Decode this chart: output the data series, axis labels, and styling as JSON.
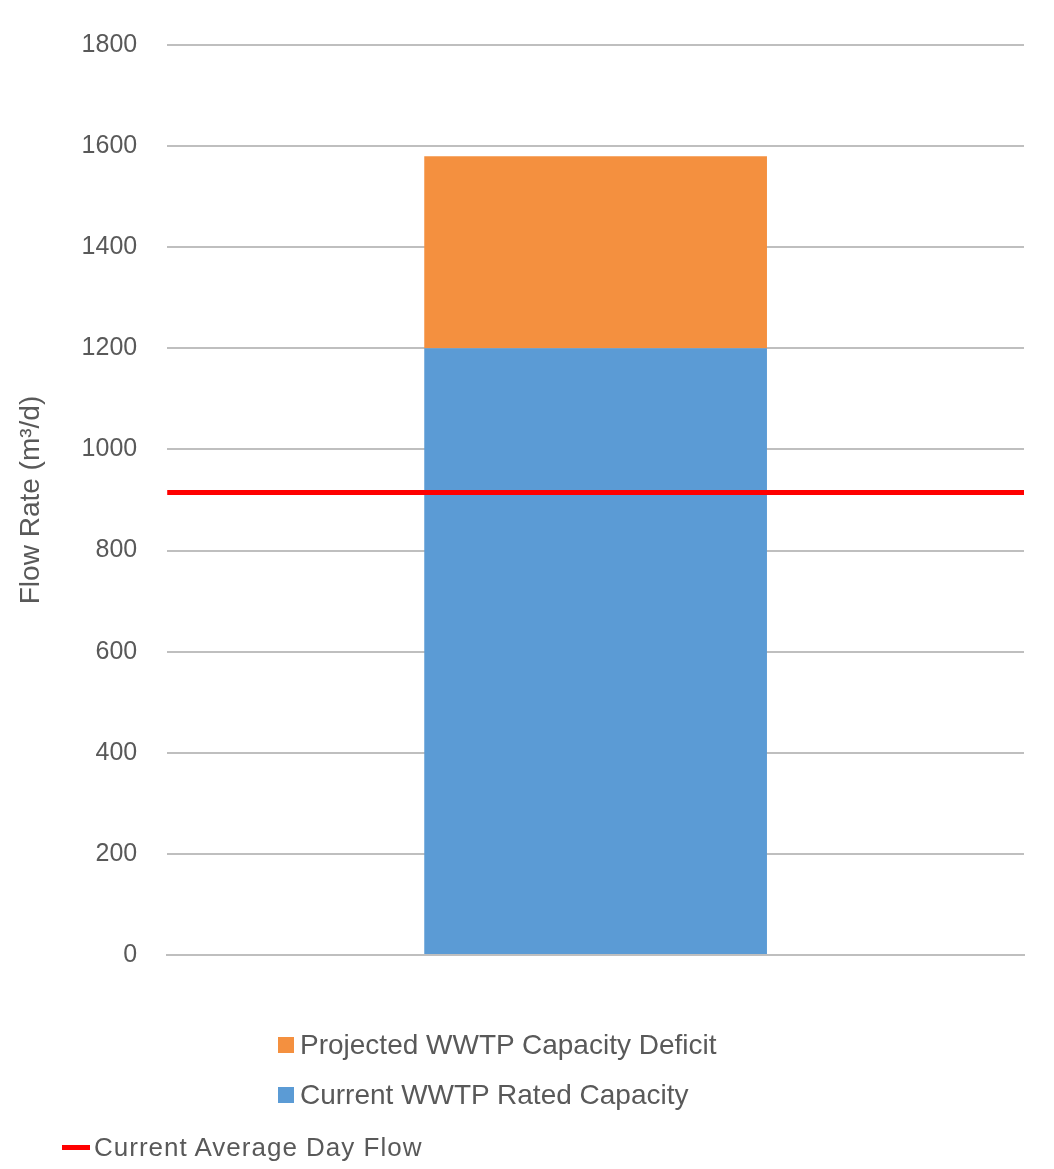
{
  "chart_data": {
    "type": "bar",
    "ylabel": "Flow Rate (m³/d)",
    "categories": [
      null
    ],
    "stacked": true,
    "series": [
      {
        "name": "Current WWTP Rated Capacity",
        "color": "#5b9bd5",
        "values": [
          1200
        ]
      },
      {
        "name": "Projected WWTP Capacity Deficit",
        "color": "#f4903f",
        "values": [
          380
        ]
      }
    ],
    "ylim": [
      0,
      1800
    ],
    "yticks": [
      0,
      200,
      400,
      600,
      800,
      1000,
      1200,
      1400,
      1600,
      1800
    ],
    "grid": "y",
    "legend": "bottom",
    "ref_lines": [
      {
        "axis": "y",
        "value": 915,
        "label": "Current Average Day Flow",
        "color": "#ff0000"
      }
    ]
  }
}
